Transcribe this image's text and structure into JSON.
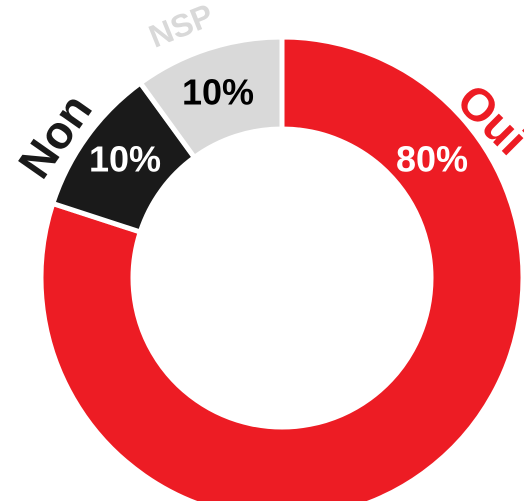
{
  "chart_data": {
    "type": "donut",
    "categories": [
      "Oui",
      "Non",
      "NSP"
    ],
    "values": [
      80,
      10,
      10
    ],
    "value_labels": [
      "80%",
      "10%",
      "10%"
    ],
    "colors": [
      "#ed1c24",
      "#1a1a1a",
      "#d9d9d9"
    ]
  }
}
